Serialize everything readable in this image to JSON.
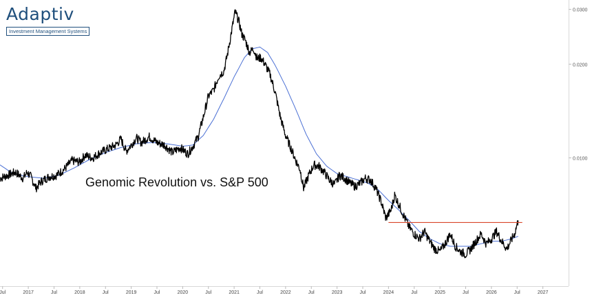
{
  "logo": {
    "brand": "Adaptiv",
    "tagline": "Investment Management Systems"
  },
  "chart_data": {
    "type": "line",
    "title": "Genomic Revolution vs. S&P 500",
    "y_scale": "log",
    "ylim": [
      0.0042,
      0.0315
    ],
    "xlim": [
      2016.45,
      2027.5
    ],
    "y_ticks": [
      {
        "value": 0.03,
        "label": "0.0300"
      },
      {
        "value": 0.02,
        "label": "0.0200"
      },
      {
        "value": 0.01,
        "label": "0.0100"
      }
    ],
    "x_ticks": [
      {
        "value": 2016.5,
        "label": "Jul"
      },
      {
        "value": 2017.0,
        "label": "2017"
      },
      {
        "value": 2017.5,
        "label": "Jul"
      },
      {
        "value": 2018.0,
        "label": "2018"
      },
      {
        "value": 2018.5,
        "label": "Jul"
      },
      {
        "value": 2019.0,
        "label": "2019"
      },
      {
        "value": 2019.5,
        "label": "Jul"
      },
      {
        "value": 2020.0,
        "label": "2020"
      },
      {
        "value": 2020.5,
        "label": "Jul"
      },
      {
        "value": 2021.0,
        "label": "2021"
      },
      {
        "value": 2021.5,
        "label": "Jul"
      },
      {
        "value": 2022.0,
        "label": "2022"
      },
      {
        "value": 2022.5,
        "label": "Jul"
      },
      {
        "value": 2023.0,
        "label": "2023"
      },
      {
        "value": 2023.5,
        "label": "Jul"
      },
      {
        "value": 2024.0,
        "label": "2024"
      },
      {
        "value": 2024.5,
        "label": "Jul"
      },
      {
        "value": 2025.0,
        "label": "2025"
      },
      {
        "value": 2025.5,
        "label": "Jul"
      },
      {
        "value": 2026.0,
        "label": "2026"
      },
      {
        "value": 2026.5,
        "label": "Jul"
      },
      {
        "value": 2027.0,
        "label": "2027"
      }
    ],
    "series": [
      {
        "role": "ratio",
        "color": "#000000",
        "points": [
          [
            2016.45,
            0.0086
          ],
          [
            2016.6,
            0.0088
          ],
          [
            2016.75,
            0.009
          ],
          [
            2016.9,
            0.0086
          ],
          [
            2016.98,
            0.009
          ],
          [
            2017.05,
            0.0087
          ],
          [
            2017.15,
            0.008
          ],
          [
            2017.25,
            0.0084
          ],
          [
            2017.4,
            0.0087
          ],
          [
            2017.55,
            0.0088
          ],
          [
            2017.7,
            0.0092
          ],
          [
            2017.85,
            0.0098
          ],
          [
            2018.0,
            0.0097
          ],
          [
            2018.1,
            0.0102
          ],
          [
            2018.25,
            0.01
          ],
          [
            2018.4,
            0.0104
          ],
          [
            2018.55,
            0.0107
          ],
          [
            2018.7,
            0.011
          ],
          [
            2018.8,
            0.0115
          ],
          [
            2018.9,
            0.0105
          ],
          [
            2019.0,
            0.011
          ],
          [
            2019.1,
            0.0116
          ],
          [
            2019.2,
            0.0112
          ],
          [
            2019.35,
            0.0117
          ],
          [
            2019.5,
            0.0112
          ],
          [
            2019.65,
            0.011
          ],
          [
            2019.8,
            0.0104
          ],
          [
            2019.95,
            0.0108
          ],
          [
            2020.1,
            0.0103
          ],
          [
            2020.2,
            0.0109
          ],
          [
            2020.3,
            0.0117
          ],
          [
            2020.4,
            0.0135
          ],
          [
            2020.5,
            0.0158
          ],
          [
            2020.6,
            0.0165
          ],
          [
            2020.7,
            0.0183
          ],
          [
            2020.8,
            0.019
          ],
          [
            2020.87,
            0.0215
          ],
          [
            2020.95,
            0.0255
          ],
          [
            2021.02,
            0.0295
          ],
          [
            2021.09,
            0.0275
          ],
          [
            2021.15,
            0.025
          ],
          [
            2021.22,
            0.0238
          ],
          [
            2021.3,
            0.0218
          ],
          [
            2021.38,
            0.0224
          ],
          [
            2021.45,
            0.0208
          ],
          [
            2021.52,
            0.021
          ],
          [
            2021.6,
            0.02
          ],
          [
            2021.7,
            0.0185
          ],
          [
            2021.8,
            0.0162
          ],
          [
            2021.9,
            0.0135
          ],
          [
            2022.0,
            0.0118
          ],
          [
            2022.1,
            0.0108
          ],
          [
            2022.2,
            0.0098
          ],
          [
            2022.28,
            0.0092
          ],
          [
            2022.35,
            0.008
          ],
          [
            2022.45,
            0.0088
          ],
          [
            2022.55,
            0.0095
          ],
          [
            2022.65,
            0.0094
          ],
          [
            2022.75,
            0.009
          ],
          [
            2022.85,
            0.0085
          ],
          [
            2022.95,
            0.0082
          ],
          [
            2023.05,
            0.0088
          ],
          [
            2023.15,
            0.0086
          ],
          [
            2023.25,
            0.0083
          ],
          [
            2023.35,
            0.0081
          ],
          [
            2023.45,
            0.0083
          ],
          [
            2023.55,
            0.0086
          ],
          [
            2023.65,
            0.0085
          ],
          [
            2023.75,
            0.008
          ],
          [
            2023.85,
            0.0073
          ],
          [
            2023.95,
            0.0064
          ],
          [
            2024.05,
            0.0068
          ],
          [
            2024.12,
            0.0076
          ],
          [
            2024.2,
            0.0071
          ],
          [
            2024.3,
            0.0065
          ],
          [
            2024.4,
            0.006
          ],
          [
            2024.5,
            0.0057
          ],
          [
            2024.6,
            0.0055
          ],
          [
            2024.7,
            0.0058
          ],
          [
            2024.8,
            0.0054
          ],
          [
            2024.9,
            0.0051
          ],
          [
            2025.0,
            0.005
          ],
          [
            2025.1,
            0.0053
          ],
          [
            2025.2,
            0.0057
          ],
          [
            2025.3,
            0.0052
          ],
          [
            2025.4,
            0.005
          ],
          [
            2025.5,
            0.0049
          ],
          [
            2025.6,
            0.0051
          ],
          [
            2025.7,
            0.0054
          ],
          [
            2025.8,
            0.0057
          ],
          [
            2025.9,
            0.0053
          ],
          [
            2026.0,
            0.0055
          ],
          [
            2026.1,
            0.0058
          ],
          [
            2026.2,
            0.0054
          ],
          [
            2026.3,
            0.0051
          ],
          [
            2026.4,
            0.0055
          ],
          [
            2026.45,
            0.0057
          ],
          [
            2026.52,
            0.0063
          ]
        ]
      },
      {
        "role": "moving-average",
        "color": "#4a6fd4",
        "points": [
          [
            2016.45,
            0.0095
          ],
          [
            2016.7,
            0.0089
          ],
          [
            2017.0,
            0.0087
          ],
          [
            2017.3,
            0.0086
          ],
          [
            2017.6,
            0.0088
          ],
          [
            2017.9,
            0.0093
          ],
          [
            2018.2,
            0.0099
          ],
          [
            2018.5,
            0.0104
          ],
          [
            2018.8,
            0.0108
          ],
          [
            2019.1,
            0.0111
          ],
          [
            2019.4,
            0.0112
          ],
          [
            2019.7,
            0.0111
          ],
          [
            2020.0,
            0.0109
          ],
          [
            2020.2,
            0.011
          ],
          [
            2020.4,
            0.0118
          ],
          [
            2020.6,
            0.0133
          ],
          [
            2020.8,
            0.0155
          ],
          [
            2021.0,
            0.0182
          ],
          [
            2021.2,
            0.021
          ],
          [
            2021.35,
            0.0224
          ],
          [
            2021.5,
            0.0227
          ],
          [
            2021.65,
            0.0218
          ],
          [
            2021.8,
            0.0198
          ],
          [
            2022.0,
            0.017
          ],
          [
            2022.2,
            0.0143
          ],
          [
            2022.4,
            0.0119
          ],
          [
            2022.6,
            0.0103
          ],
          [
            2022.8,
            0.0094
          ],
          [
            2023.0,
            0.0089
          ],
          [
            2023.2,
            0.0087
          ],
          [
            2023.4,
            0.0085
          ],
          [
            2023.6,
            0.0083
          ],
          [
            2023.8,
            0.0079
          ],
          [
            2024.0,
            0.0073
          ],
          [
            2024.2,
            0.0068
          ],
          [
            2024.4,
            0.0063
          ],
          [
            2024.6,
            0.0058
          ],
          [
            2024.8,
            0.0055
          ],
          [
            2025.0,
            0.0053
          ],
          [
            2025.2,
            0.0052
          ],
          [
            2025.4,
            0.0052
          ],
          [
            2025.6,
            0.0052
          ],
          [
            2025.8,
            0.0053
          ],
          [
            2026.0,
            0.0054
          ],
          [
            2026.2,
            0.0054
          ],
          [
            2026.4,
            0.0055
          ],
          [
            2026.52,
            0.0056
          ]
        ]
      }
    ],
    "annotations": [
      {
        "type": "horizontal-line",
        "color": "#d9462a",
        "y": 0.0062,
        "x_start": 2024.0,
        "x_end": 2026.6
      }
    ]
  }
}
